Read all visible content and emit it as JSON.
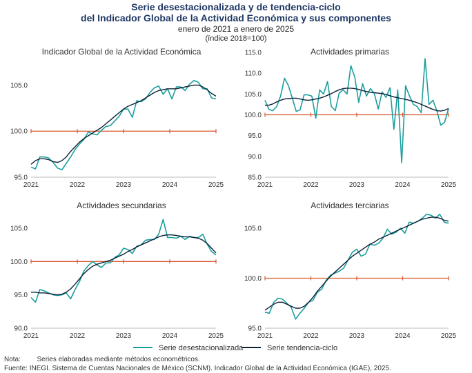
{
  "header": {
    "title_line1": "Serie desestacionalizada y de tendencia-ciclo",
    "title_line2": "del Indicador Global de la Actividad Económica y sus componentes",
    "period": "enero de 2021 a enero de 2025",
    "base": "(índice 2018=100)"
  },
  "legend": {
    "sa": "Serie desestacionalizada",
    "tc": "Serie tendencia-ciclo"
  },
  "colors": {
    "sa": "#1a9e9e",
    "tc": "#0d2137",
    "ref": "#d9542c",
    "axis": "#bbbbbb"
  },
  "footer": {
    "note_label": "Nota:",
    "note_text": "Series elaboradas mediante métodos econométricos.",
    "source_label": "Fuente:",
    "source_text": "INEGI. Sistema de Cuentas Nacionales de México (SCNM). Indicador Global de la Actividad Económica (IGAE), 2025."
  },
  "chart_data": [
    {
      "type": "line",
      "title": "Indicador Global de la Actividad Económica",
      "x_tick_labels": [
        "2021",
        "2022",
        "2023",
        "2024",
        "2025"
      ],
      "ylim": [
        95,
        109
      ],
      "y_ticks": [
        95,
        100,
        105
      ],
      "y_tick_labels": [
        "95.0",
        "100.0",
        "105.0"
      ],
      "reference_value": 100,
      "series": [
        {
          "name": "Serie desestacionalizada",
          "values": [
            96.1,
            95.9,
            97.2,
            97.2,
            97.1,
            96.6,
            96.0,
            95.8,
            96.5,
            97.2,
            98.0,
            98.6,
            99.1,
            99.9,
            99.7,
            99.6,
            100.1,
            100.5,
            100.6,
            101.1,
            101.6,
            102.4,
            102.4,
            101.5,
            103.3,
            103.2,
            103.5,
            104.2,
            104.7,
            104.9,
            104.0,
            104.6,
            103.5,
            104.8,
            104.8,
            104.4,
            105.1,
            105.5,
            105.3,
            104.6,
            104.6,
            103.6,
            103.5
          ]
        },
        {
          "name": "Serie tendencia-ciclo",
          "values": [
            96.4,
            96.8,
            97.0,
            97.0,
            96.9,
            96.7,
            96.6,
            96.8,
            97.2,
            97.8,
            98.3,
            98.8,
            99.2,
            99.5,
            99.8,
            100.1,
            100.4,
            100.8,
            101.2,
            101.6,
            102.0,
            102.4,
            102.7,
            102.9,
            103.1,
            103.3,
            103.6,
            103.9,
            104.2,
            104.4,
            104.5,
            104.6,
            104.6,
            104.6,
            104.7,
            104.8,
            104.9,
            105.0,
            105.0,
            104.8,
            104.5,
            104.1,
            103.8
          ]
        }
      ]
    },
    {
      "type": "line",
      "title": "Actividades primarias",
      "x_tick_labels": [
        "2021",
        "2022",
        "2023",
        "2024",
        "2025"
      ],
      "ylim": [
        85,
        116
      ],
      "y_ticks": [
        85,
        90,
        95,
        100,
        105,
        110,
        115
      ],
      "y_tick_labels": [
        "85.0",
        "90.0",
        "95.0",
        "100.0",
        "105.0",
        "110.0",
        "115.0"
      ],
      "reference_value": 100,
      "series": [
        {
          "name": "Serie desestacionalizada",
          "values": [
            103.5,
            101.3,
            101.0,
            102.0,
            104.5,
            108.8,
            107.0,
            104.0,
            100.8,
            101.2,
            104.8,
            104.8,
            104.5,
            99.2,
            106.0,
            105.0,
            108.0,
            102.0,
            101.0,
            105.2,
            106.0,
            105.0,
            111.8,
            109.0,
            103.0,
            107.5,
            104.5,
            106.3,
            105.1,
            101.4,
            105.5,
            104.2,
            106.5,
            96.5,
            106.0,
            88.5,
            107.0,
            104.5,
            102.5,
            102.0,
            100.5,
            113.5,
            102.5,
            103.5,
            101.0,
            97.5,
            98.2,
            101.5
          ]
        },
        {
          "name": "Serie tendencia-ciclo",
          "values": [
            102.3,
            102.3,
            102.6,
            103.1,
            103.5,
            103.8,
            103.9,
            104.0,
            104.0,
            103.8,
            103.6,
            103.5,
            103.6,
            103.8,
            104.0,
            104.3,
            104.7,
            105.1,
            105.6,
            106.0,
            106.3,
            106.4,
            106.4,
            106.3,
            106.1,
            105.8,
            105.6,
            105.4,
            105.3,
            105.2,
            105.1,
            104.9,
            104.6,
            104.3,
            104.1,
            103.9,
            103.7,
            103.5,
            103.2,
            102.9,
            102.5,
            102.1,
            101.7,
            101.3,
            101.0,
            100.9,
            101.1,
            101.5
          ]
        }
      ]
    },
    {
      "type": "line",
      "title": "Actividades secundarias",
      "x_tick_labels": [
        "2021",
        "2022",
        "2023",
        "2024",
        "2025"
      ],
      "ylim": [
        90,
        108
      ],
      "y_ticks": [
        90,
        95,
        100,
        105
      ],
      "y_tick_labels": [
        "90.0",
        "95.0",
        "100.0",
        "105.0"
      ],
      "reference_value": 100,
      "series": [
        {
          "name": "Serie desestacionalizada",
          "values": [
            94.6,
            93.9,
            95.8,
            95.6,
            95.3,
            95.0,
            94.9,
            95.0,
            95.3,
            94.4,
            95.8,
            97.0,
            98.6,
            99.4,
            100.0,
            99.5,
            99.1,
            99.8,
            99.8,
            100.6,
            101.0,
            102.0,
            101.8,
            101.2,
            102.3,
            102.5,
            103.2,
            103.3,
            103.3,
            104.1,
            106.3,
            103.6,
            103.6,
            103.5,
            103.8,
            103.3,
            103.8,
            103.6,
            103.6,
            104.1,
            102.6,
            101.5,
            101.0
          ]
        },
        {
          "name": "Serie tendencia-ciclo",
          "values": [
            95.4,
            95.4,
            95.3,
            95.3,
            95.2,
            95.1,
            95.0,
            95.1,
            95.4,
            95.9,
            96.6,
            97.4,
            98.2,
            98.8,
            99.3,
            99.6,
            99.8,
            100.0,
            100.2,
            100.5,
            100.8,
            101.1,
            101.5,
            101.8,
            102.2,
            102.5,
            102.8,
            103.1,
            103.4,
            103.7,
            103.9,
            104.0,
            104.0,
            103.9,
            103.8,
            103.7,
            103.7,
            103.6,
            103.5,
            103.2,
            102.7,
            102.0,
            101.3
          ]
        }
      ]
    },
    {
      "type": "line",
      "title": "Actividades terciarias",
      "x_tick_labels": [
        "2021",
        "2022",
        "2023",
        "2024",
        "2025"
      ],
      "ylim": [
        95,
        107
      ],
      "y_ticks": [
        95,
        100,
        105
      ],
      "y_tick_labels": [
        "95.0",
        "100.0",
        "105.0"
      ],
      "reference_value": 100,
      "series": [
        {
          "name": "Serie desestacionalizada",
          "values": [
            96.6,
            96.5,
            97.6,
            98.0,
            97.9,
            97.5,
            97.1,
            95.9,
            96.5,
            97.0,
            97.6,
            97.8,
            98.6,
            98.9,
            99.8,
            100.3,
            100.5,
            100.7,
            101.0,
            101.8,
            102.6,
            102.9,
            102.2,
            102.4,
            103.4,
            103.3,
            103.5,
            104.0,
            104.9,
            104.4,
            104.6,
            105.0,
            104.5,
            105.6,
            105.5,
            105.7,
            106.0,
            106.4,
            106.3,
            106.0,
            106.4,
            105.6,
            105.5
          ]
        },
        {
          "name": "Serie tendencia-ciclo",
          "values": [
            96.8,
            97.1,
            97.4,
            97.6,
            97.6,
            97.4,
            97.2,
            97.0,
            97.0,
            97.2,
            97.6,
            98.1,
            98.7,
            99.2,
            99.7,
            100.2,
            100.6,
            101.0,
            101.4,
            101.8,
            102.2,
            102.5,
            102.8,
            103.1,
            103.4,
            103.6,
            103.9,
            104.1,
            104.3,
            104.5,
            104.7,
            104.9,
            105.1,
            105.3,
            105.5,
            105.7,
            105.9,
            106.0,
            106.1,
            106.1,
            106.0,
            105.8,
            105.7
          ]
        }
      ]
    }
  ]
}
